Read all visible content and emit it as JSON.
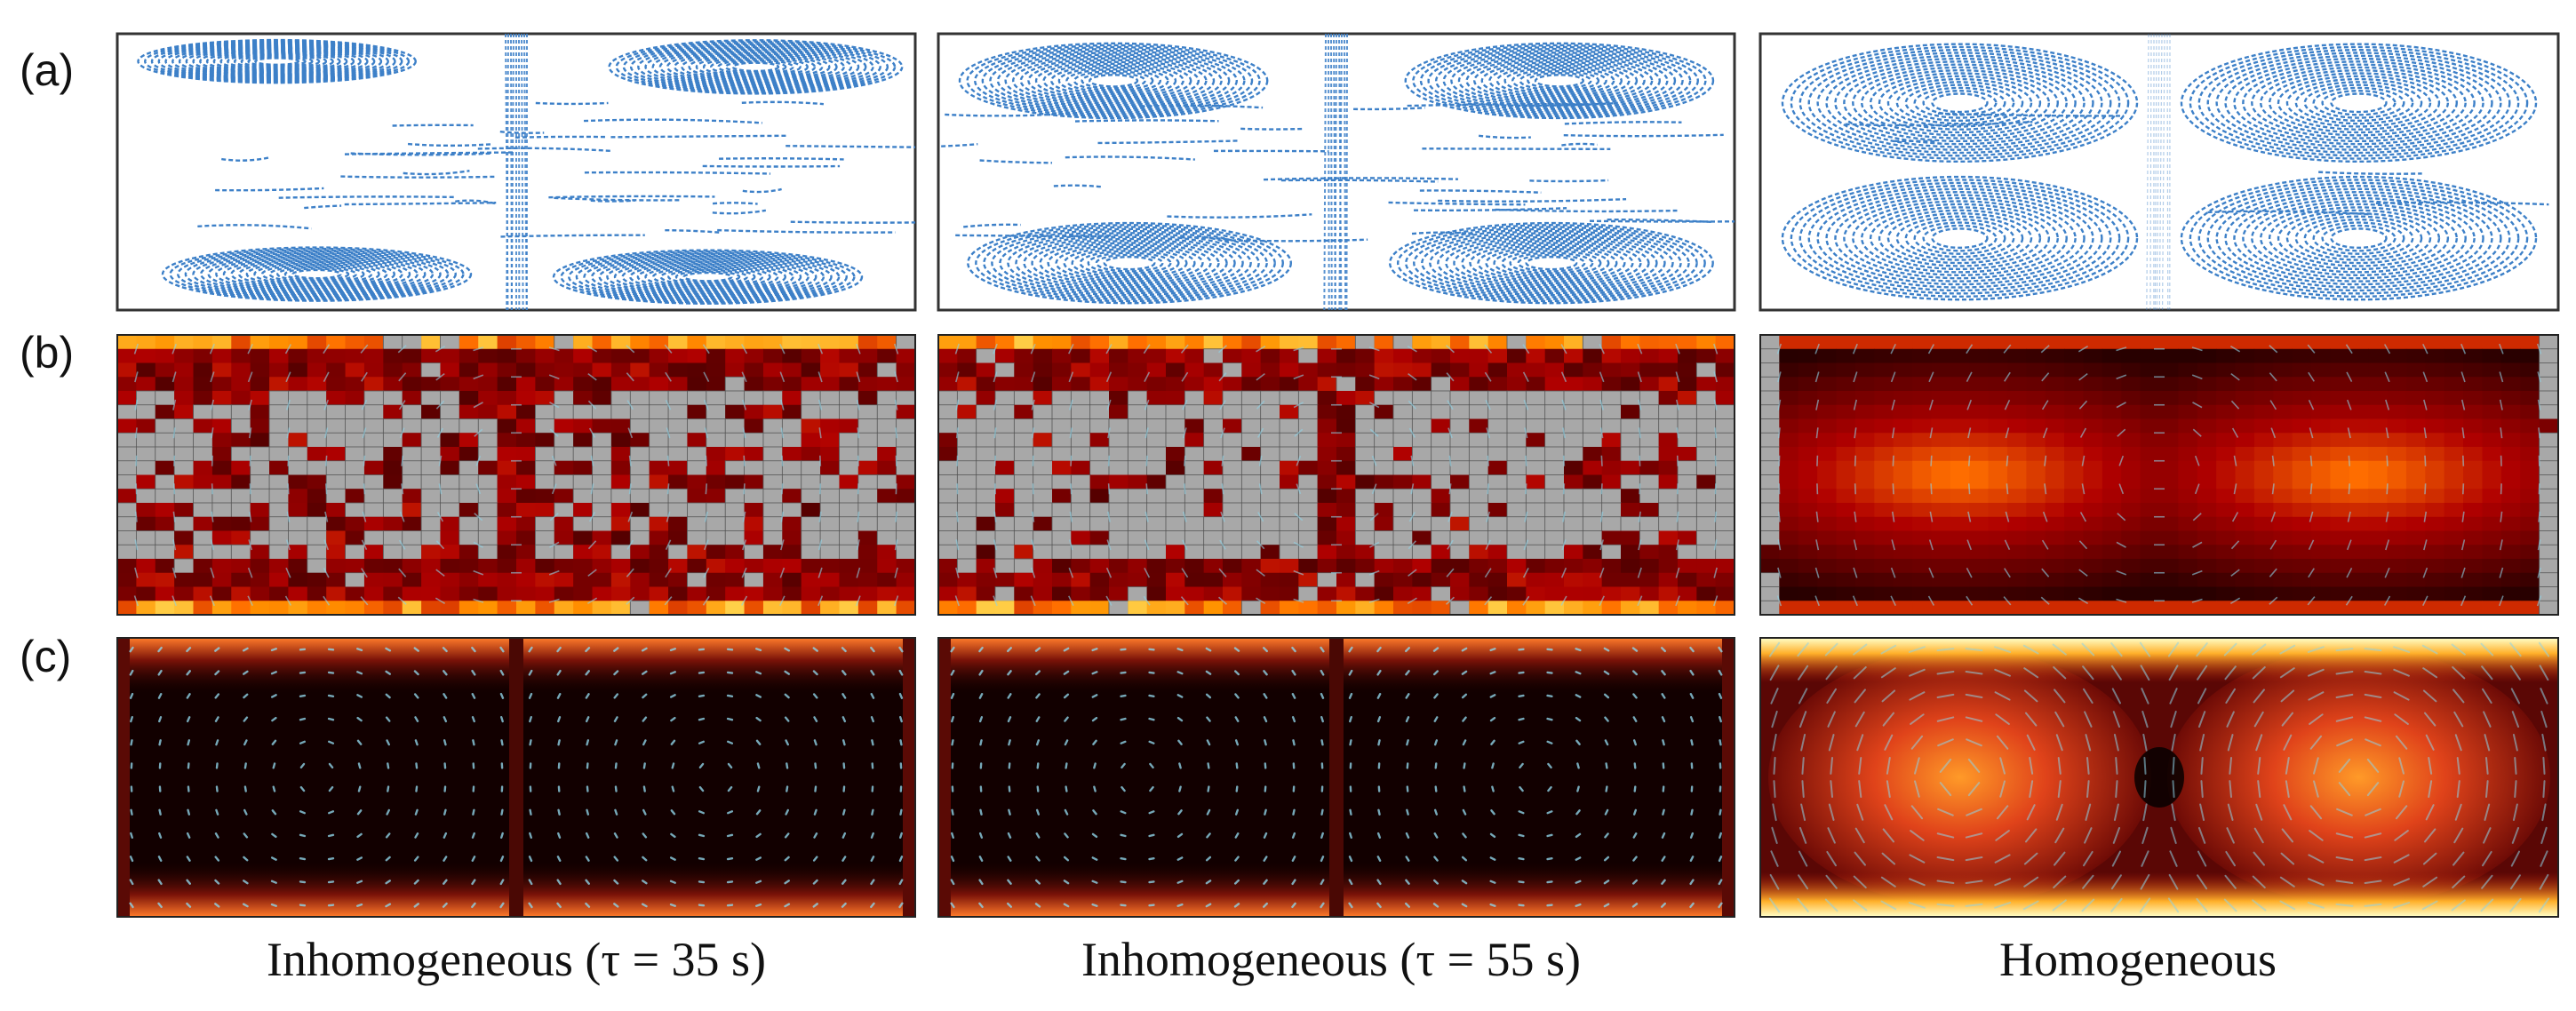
{
  "figure": {
    "row_labels": [
      "(a)",
      "(b)",
      "(c)"
    ],
    "column_labels": [
      "Inhomogeneous (τ = 35 s)",
      "Inhomogeneous (τ = 55 s)",
      "Homogeneous"
    ],
    "colors": {
      "trajectory": "#3d80c8",
      "masked_cell": "#a8a8a8",
      "arrow": "#8fd3e6",
      "heat_low": "#000000",
      "heat_high": "#ffffd0"
    }
  }
}
